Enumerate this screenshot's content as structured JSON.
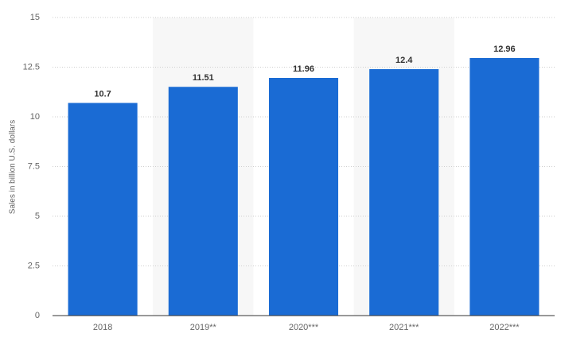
{
  "chart_data": {
    "type": "bar",
    "y_label": "Sales in billion U.S. dollars",
    "categories": [
      "2018",
      "2019**",
      "2020***",
      "2021***",
      "2022***"
    ],
    "values": [
      10.7,
      11.51,
      11.96,
      12.4,
      12.96
    ],
    "color": "#1a6bd4",
    "ylim": [
      0,
      15
    ],
    "yticks": [
      0,
      2.5,
      5,
      7.5,
      10,
      12.5,
      15
    ],
    "grid": true
  }
}
